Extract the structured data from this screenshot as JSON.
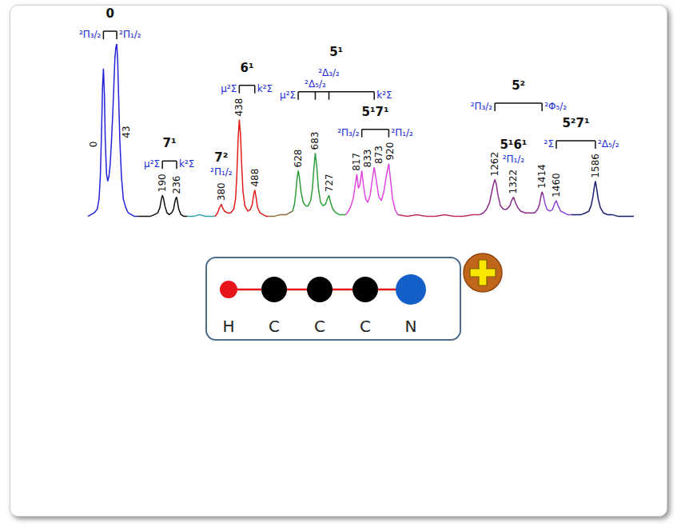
{
  "chart_data": {
    "type": "line",
    "xlim": [
      -50,
      1710
    ],
    "ylim": [
      0,
      100
    ],
    "tick_labels": false,
    "grid": false,
    "data_labels": true,
    "series": [
      {
        "color": "#2323d8",
        "x": [
          -50,
          -40,
          -30,
          -20,
          -14,
          -10,
          -6,
          -3,
          0,
          3,
          6,
          10,
          14,
          18,
          22,
          26,
          30,
          34,
          37,
          40,
          43,
          46,
          49,
          53,
          58,
          64,
          72,
          80,
          90,
          100,
          110
        ],
        "values": [
          2,
          3,
          4,
          6,
          12,
          25,
          50,
          75,
          86,
          72,
          45,
          26,
          22,
          25,
          32,
          45,
          60,
          78,
          92,
          98,
          100,
          90,
          70,
          45,
          25,
          12,
          7,
          4,
          3,
          2,
          2
        ]
      },
      {
        "color": "#111111",
        "x": [
          110,
          130,
          150,
          165,
          175,
          182,
          186,
          190,
          194,
          198,
          205,
          212,
          220,
          226,
          230,
          233,
          236,
          239,
          243,
          250,
          260,
          270
        ],
        "values": [
          2,
          2,
          2,
          3,
          4,
          7,
          11,
          14,
          12,
          8,
          4,
          3,
          4,
          6,
          10,
          12,
          13,
          10,
          6,
          3,
          2,
          2
        ]
      },
      {
        "color": "#2f9fa3",
        "x": [
          270,
          290,
          310,
          330,
          350,
          360
        ],
        "values": [
          2,
          2,
          3,
          2,
          2,
          2
        ]
      },
      {
        "color": "#e01c1c",
        "x": [
          360,
          368,
          374,
          378,
          380,
          384,
          390,
          400,
          410,
          420,
          426,
          430,
          434,
          438,
          442,
          446,
          450,
          456,
          465,
          474,
          480,
          484,
          488,
          492,
          497,
          505,
          515,
          525,
          533
        ],
        "values": [
          2,
          4,
          7,
          8,
          9,
          7,
          5,
          4,
          4,
          6,
          12,
          25,
          45,
          57,
          48,
          30,
          16,
          8,
          5,
          6,
          9,
          14,
          17,
          13,
          7,
          4,
          3,
          2,
          2
        ]
      },
      {
        "color": "#8a6a34",
        "x": [
          533,
          550,
          570,
          590,
          600,
          610
        ],
        "values": [
          2,
          2,
          3,
          3,
          4,
          5
        ]
      },
      {
        "color": "#2e9e3a",
        "x": [
          610,
          616,
          620,
          624,
          628,
          632,
          637,
          644,
          652,
          660,
          668,
          674,
          678,
          683,
          688,
          693,
          700,
          708,
          716,
          722,
          727,
          732,
          740,
          750,
          760,
          770,
          782
        ],
        "values": [
          5,
          9,
          15,
          23,
          28,
          24,
          16,
          10,
          8,
          8,
          11,
          18,
          28,
          38,
          30,
          18,
          10,
          8,
          9,
          12,
          14,
          10,
          6,
          4,
          3,
          3,
          3
        ]
      },
      {
        "color": "#e046e0",
        "x": [
          782,
          790,
          798,
          805,
          812,
          817,
          822,
          827,
          833,
          838,
          845,
          852,
          860,
          866,
          873,
          880,
          888,
          896,
          904,
          912,
          920,
          926,
          932,
          940,
          949
        ],
        "values": [
          3,
          5,
          8,
          12,
          20,
          26,
          18,
          20,
          28,
          20,
          12,
          10,
          14,
          22,
          30,
          22,
          13,
          11,
          16,
          25,
          32,
          22,
          12,
          6,
          3
        ]
      },
      {
        "color": "#c0305a",
        "x": [
          949,
          980,
          1010,
          1040,
          1070,
          1100,
          1130,
          1160,
          1190,
          1213
        ],
        "values": [
          3,
          2,
          3,
          2,
          2,
          3,
          2,
          2,
          3,
          3
        ]
      },
      {
        "color": "#8a2a8a",
        "x": [
          1213,
          1225,
          1235,
          1245,
          1252,
          1257,
          1262,
          1267,
          1272,
          1280,
          1290,
          1300,
          1310,
          1316,
          1322,
          1328,
          1336,
          1345,
          1360,
          1375,
          1390,
          1400,
          1406,
          1410,
          1414,
          1418
        ],
        "values": [
          3,
          4,
          6,
          10,
          16,
          20,
          23,
          20,
          14,
          8,
          6,
          6,
          8,
          11,
          13,
          10,
          7,
          5,
          4,
          4,
          4,
          6,
          9,
          13,
          16,
          14
        ]
      },
      {
        "color": "#8e44d8",
        "x": [
          1418,
          1424,
          1430,
          1440,
          1448,
          1454,
          1460,
          1466,
          1474,
          1485,
          1496,
          1508
        ],
        "values": [
          14,
          9,
          6,
          5,
          6,
          9,
          11,
          8,
          5,
          4,
          3,
          3
        ]
      },
      {
        "color": "#1a1a6e",
        "x": [
          1508,
          1525,
          1540,
          1555,
          1565,
          1572,
          1578,
          1582,
          1586,
          1590,
          1595,
          1602,
          1612,
          1625,
          1640,
          1660,
          1680,
          1700,
          1710
        ],
        "values": [
          3,
          3,
          3,
          4,
          5,
          8,
          13,
          18,
          22,
          18,
          12,
          7,
          4,
          3,
          3,
          2,
          2,
          2,
          2
        ]
      }
    ],
    "peaks": {
      "x": [
        0,
        43,
        190,
        236,
        380,
        438,
        488,
        628,
        683,
        727,
        817,
        833,
        873,
        920,
        1262,
        1322,
        1414,
        1460,
        1586
      ],
      "values": [
        86,
        100,
        14,
        13,
        9,
        57,
        17,
        28,
        38,
        14,
        26,
        28,
        30,
        32,
        23,
        13,
        16,
        11,
        22
      ]
    },
    "bands": [
      {
        "label": "0",
        "ticks": [
          0,
          43
        ],
        "states": [
          "²Π₃/₂",
          "²Π₁/₂"
        ]
      },
      {
        "label": "7¹",
        "ticks": [
          190,
          236
        ],
        "states": [
          "μ²Σ",
          "k²Σ"
        ]
      },
      {
        "label": "7²",
        "ticks": [
          380
        ],
        "states": [
          "²Π₁/₂"
        ]
      },
      {
        "label": "6¹",
        "ticks": [
          438,
          488
        ],
        "states": [
          "μ²Σ",
          "k²Σ"
        ]
      },
      {
        "label": "5¹",
        "ticks": [
          628,
          683,
          727,
          873
        ],
        "states": [
          "μ²Σ",
          "²Δ₅/₂",
          "²Δ₃/₂",
          "k²Σ"
        ]
      },
      {
        "label": "5¹7¹",
        "ticks": [
          833,
          920
        ],
        "states": [
          "²Π₃/₂",
          "²Π₁/₂"
        ]
      },
      {
        "label": "5²",
        "ticks": [
          1262,
          1414
        ],
        "states": [
          "²Π₃/₂",
          "²Φ₅/₂"
        ]
      },
      {
        "label": "5¹6¹",
        "ticks": [
          1322
        ],
        "states": [
          "²Π₁/₂"
        ]
      },
      {
        "label": "5²7¹",
        "ticks": [
          1460,
          1586
        ],
        "states": [
          "²Σ",
          "²Δ₅/₂"
        ]
      }
    ]
  },
  "molecule": {
    "atoms": [
      "H",
      "C",
      "C",
      "C",
      "N"
    ],
    "colors": [
      "#e8141c",
      "#000000",
      "#000000",
      "#000000",
      "#1560c8"
    ]
  }
}
